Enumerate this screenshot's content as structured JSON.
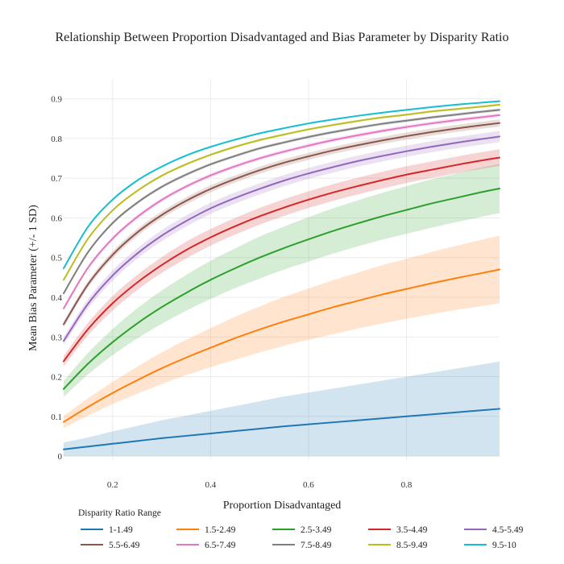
{
  "chart_data": {
    "type": "line",
    "title": "Relationship Between Proportion Disadvantaged and Bias Parameter by Disparity Ratio",
    "xlabel": "Proportion Disadvantaged",
    "ylabel": "Mean Bias Parameter (+/- 1 SD)",
    "xlim": [
      0.1,
      0.99
    ],
    "ylim": [
      -0.01,
      0.95
    ],
    "x_ticks": [
      0.2,
      0.4,
      0.6,
      0.8
    ],
    "x_tick_labels": [
      "0.2",
      "0.4",
      "0.6",
      "0.8"
    ],
    "y_ticks": [
      0,
      0.1,
      0.2,
      0.3,
      0.4,
      0.5,
      0.6,
      0.7,
      0.8,
      0.9
    ],
    "y_tick_labels": [
      "0",
      "0.1",
      "0.2",
      "0.3",
      "0.4",
      "0.5",
      "0.6",
      "0.7",
      "0.8",
      "0.9"
    ],
    "grid": true,
    "legend_title": "Disparity Ratio Range",
    "legend_position": "bottom",
    "shaded_band": "mean +/- 1 SD",
    "x": [
      0.1,
      0.15,
      0.2,
      0.25,
      0.3,
      0.35,
      0.4,
      0.45,
      0.5,
      0.55,
      0.6,
      0.65,
      0.7,
      0.75,
      0.8,
      0.85,
      0.9,
      0.95,
      0.99
    ],
    "series": [
      {
        "name": "1-1.49",
        "color": "#1f77b4",
        "values": [
          0.017,
          0.024,
          0.031,
          0.038,
          0.045,
          0.051,
          0.057,
          0.063,
          0.069,
          0.075,
          0.08,
          0.085,
          0.09,
          0.095,
          0.1,
          0.105,
          0.11,
          0.115,
          0.119
        ],
        "lower": [
          0.0,
          0.0,
          0.0,
          0.0,
          0.0,
          0.0,
          0.0,
          0.0,
          0.0,
          0.0,
          0.0,
          0.0,
          0.0,
          0.0,
          0.0,
          0.0,
          0.0,
          0.0,
          0.0
        ],
        "upper": [
          0.034,
          0.047,
          0.062,
          0.076,
          0.09,
          0.102,
          0.114,
          0.126,
          0.138,
          0.15,
          0.16,
          0.17,
          0.18,
          0.19,
          0.2,
          0.21,
          0.22,
          0.23,
          0.238
        ]
      },
      {
        "name": "1.5-2.49",
        "color": "#ff7f0e",
        "values": [
          0.086,
          0.124,
          0.159,
          0.191,
          0.221,
          0.248,
          0.273,
          0.297,
          0.319,
          0.339,
          0.357,
          0.375,
          0.391,
          0.407,
          0.421,
          0.435,
          0.448,
          0.46,
          0.47
        ],
        "lower": [
          0.071,
          0.102,
          0.131,
          0.157,
          0.181,
          0.204,
          0.224,
          0.243,
          0.261,
          0.278,
          0.293,
          0.307,
          0.321,
          0.334,
          0.346,
          0.357,
          0.368,
          0.377,
          0.385
        ],
        "upper": [
          0.101,
          0.146,
          0.187,
          0.225,
          0.261,
          0.293,
          0.322,
          0.351,
          0.377,
          0.401,
          0.422,
          0.443,
          0.462,
          0.481,
          0.497,
          0.514,
          0.529,
          0.544,
          0.555
        ]
      },
      {
        "name": "2.5-3.49",
        "color": "#2ca02c",
        "values": [
          0.169,
          0.233,
          0.287,
          0.334,
          0.375,
          0.411,
          0.444,
          0.473,
          0.5,
          0.524,
          0.546,
          0.567,
          0.586,
          0.604,
          0.62,
          0.636,
          0.65,
          0.664,
          0.674
        ],
        "lower": [
          0.149,
          0.206,
          0.254,
          0.296,
          0.333,
          0.366,
          0.396,
          0.423,
          0.447,
          0.47,
          0.49,
          0.51,
          0.528,
          0.545,
          0.56,
          0.575,
          0.589,
          0.602,
          0.612
        ],
        "upper": [
          0.189,
          0.26,
          0.32,
          0.372,
          0.417,
          0.456,
          0.492,
          0.523,
          0.553,
          0.578,
          0.602,
          0.624,
          0.644,
          0.663,
          0.68,
          0.697,
          0.711,
          0.726,
          0.736
        ]
      },
      {
        "name": "3.5-4.49",
        "color": "#d62728",
        "values": [
          0.239,
          0.32,
          0.385,
          0.437,
          0.481,
          0.519,
          0.551,
          0.579,
          0.604,
          0.626,
          0.646,
          0.664,
          0.68,
          0.695,
          0.709,
          0.721,
          0.733,
          0.744,
          0.752
        ],
        "lower": [
          0.226,
          0.304,
          0.367,
          0.418,
          0.461,
          0.498,
          0.53,
          0.558,
          0.583,
          0.605,
          0.625,
          0.643,
          0.659,
          0.674,
          0.688,
          0.7,
          0.712,
          0.723,
          0.731
        ],
        "upper": [
          0.252,
          0.336,
          0.403,
          0.456,
          0.501,
          0.54,
          0.572,
          0.6,
          0.625,
          0.647,
          0.667,
          0.685,
          0.701,
          0.716,
          0.73,
          0.742,
          0.754,
          0.765,
          0.773
        ]
      },
      {
        "name": "4.5-5.49",
        "color": "#9467bd",
        "values": [
          0.29,
          0.384,
          0.455,
          0.51,
          0.555,
          0.592,
          0.624,
          0.65,
          0.673,
          0.694,
          0.712,
          0.728,
          0.743,
          0.756,
          0.768,
          0.779,
          0.789,
          0.798,
          0.805
        ],
        "lower": [
          0.28,
          0.372,
          0.442,
          0.497,
          0.541,
          0.578,
          0.61,
          0.636,
          0.659,
          0.68,
          0.698,
          0.714,
          0.729,
          0.742,
          0.754,
          0.765,
          0.775,
          0.784,
          0.791
        ],
        "upper": [
          0.3,
          0.396,
          0.468,
          0.523,
          0.569,
          0.606,
          0.638,
          0.664,
          0.687,
          0.708,
          0.726,
          0.742,
          0.757,
          0.77,
          0.782,
          0.793,
          0.803,
          0.812,
          0.819
        ]
      },
      {
        "name": "5.5-6.49",
        "color": "#8c564b",
        "values": [
          0.332,
          0.433,
          0.507,
          0.563,
          0.607,
          0.643,
          0.673,
          0.698,
          0.72,
          0.739,
          0.755,
          0.77,
          0.783,
          0.795,
          0.806,
          0.816,
          0.825,
          0.833,
          0.839
        ],
        "lower": [
          0.325,
          0.425,
          0.498,
          0.554,
          0.598,
          0.634,
          0.664,
          0.689,
          0.711,
          0.73,
          0.746,
          0.761,
          0.774,
          0.786,
          0.797,
          0.807,
          0.816,
          0.824,
          0.83
        ],
        "upper": [
          0.339,
          0.441,
          0.516,
          0.572,
          0.616,
          0.652,
          0.682,
          0.707,
          0.729,
          0.748,
          0.764,
          0.779,
          0.792,
          0.804,
          0.815,
          0.825,
          0.834,
          0.842,
          0.848
        ]
      },
      {
        "name": "6.5-7.49",
        "color": "#e377c2",
        "values": [
          0.372,
          0.475,
          0.548,
          0.602,
          0.645,
          0.679,
          0.707,
          0.73,
          0.75,
          0.767,
          0.782,
          0.796,
          0.808,
          0.819,
          0.829,
          0.838,
          0.846,
          0.853,
          0.859
        ],
        "lower": [
          0.367,
          0.47,
          0.543,
          0.597,
          0.64,
          0.674,
          0.702,
          0.725,
          0.745,
          0.762,
          0.777,
          0.791,
          0.803,
          0.814,
          0.824,
          0.833,
          0.841,
          0.848,
          0.854
        ],
        "upper": [
          0.377,
          0.48,
          0.553,
          0.607,
          0.65,
          0.684,
          0.712,
          0.735,
          0.755,
          0.772,
          0.787,
          0.801,
          0.813,
          0.824,
          0.834,
          0.843,
          0.851,
          0.858,
          0.864
        ]
      },
      {
        "name": "7.5-8.49",
        "color": "#7f7f7f",
        "values": [
          0.41,
          0.514,
          0.587,
          0.638,
          0.678,
          0.709,
          0.735,
          0.756,
          0.775,
          0.79,
          0.804,
          0.816,
          0.827,
          0.837,
          0.845,
          0.853,
          0.86,
          0.867,
          0.872
        ],
        "lower": [
          0.406,
          0.51,
          0.583,
          0.634,
          0.674,
          0.705,
          0.731,
          0.752,
          0.771,
          0.786,
          0.8,
          0.812,
          0.823,
          0.833,
          0.841,
          0.849,
          0.856,
          0.863,
          0.868
        ],
        "upper": [
          0.414,
          0.518,
          0.591,
          0.642,
          0.682,
          0.713,
          0.739,
          0.76,
          0.779,
          0.794,
          0.808,
          0.82,
          0.831,
          0.841,
          0.849,
          0.857,
          0.864,
          0.871,
          0.876
        ]
      },
      {
        "name": "8.5-9.49",
        "color": "#bcbd22",
        "values": [
          0.444,
          0.548,
          0.619,
          0.668,
          0.706,
          0.735,
          0.759,
          0.779,
          0.796,
          0.81,
          0.823,
          0.834,
          0.844,
          0.853,
          0.86,
          0.868,
          0.874,
          0.88,
          0.885
        ],
        "lower": [
          0.441,
          0.545,
          0.616,
          0.665,
          0.703,
          0.732,
          0.756,
          0.776,
          0.793,
          0.807,
          0.82,
          0.831,
          0.841,
          0.85,
          0.857,
          0.865,
          0.871,
          0.877,
          0.882
        ],
        "upper": [
          0.447,
          0.551,
          0.622,
          0.671,
          0.709,
          0.738,
          0.762,
          0.782,
          0.799,
          0.813,
          0.826,
          0.837,
          0.847,
          0.856,
          0.863,
          0.871,
          0.877,
          0.883,
          0.888
        ]
      },
      {
        "name": "9.5-10",
        "color": "#17becf",
        "values": [
          0.473,
          0.578,
          0.646,
          0.694,
          0.729,
          0.757,
          0.779,
          0.797,
          0.813,
          0.826,
          0.838,
          0.848,
          0.857,
          0.865,
          0.872,
          0.879,
          0.885,
          0.89,
          0.894
        ],
        "lower": [
          0.471,
          0.576,
          0.644,
          0.692,
          0.727,
          0.755,
          0.777,
          0.795,
          0.811,
          0.824,
          0.836,
          0.846,
          0.855,
          0.863,
          0.87,
          0.877,
          0.883,
          0.888,
          0.892
        ],
        "upper": [
          0.475,
          0.58,
          0.648,
          0.696,
          0.731,
          0.759,
          0.781,
          0.799,
          0.815,
          0.828,
          0.84,
          0.85,
          0.859,
          0.867,
          0.874,
          0.881,
          0.887,
          0.892,
          0.896
        ]
      }
    ]
  }
}
